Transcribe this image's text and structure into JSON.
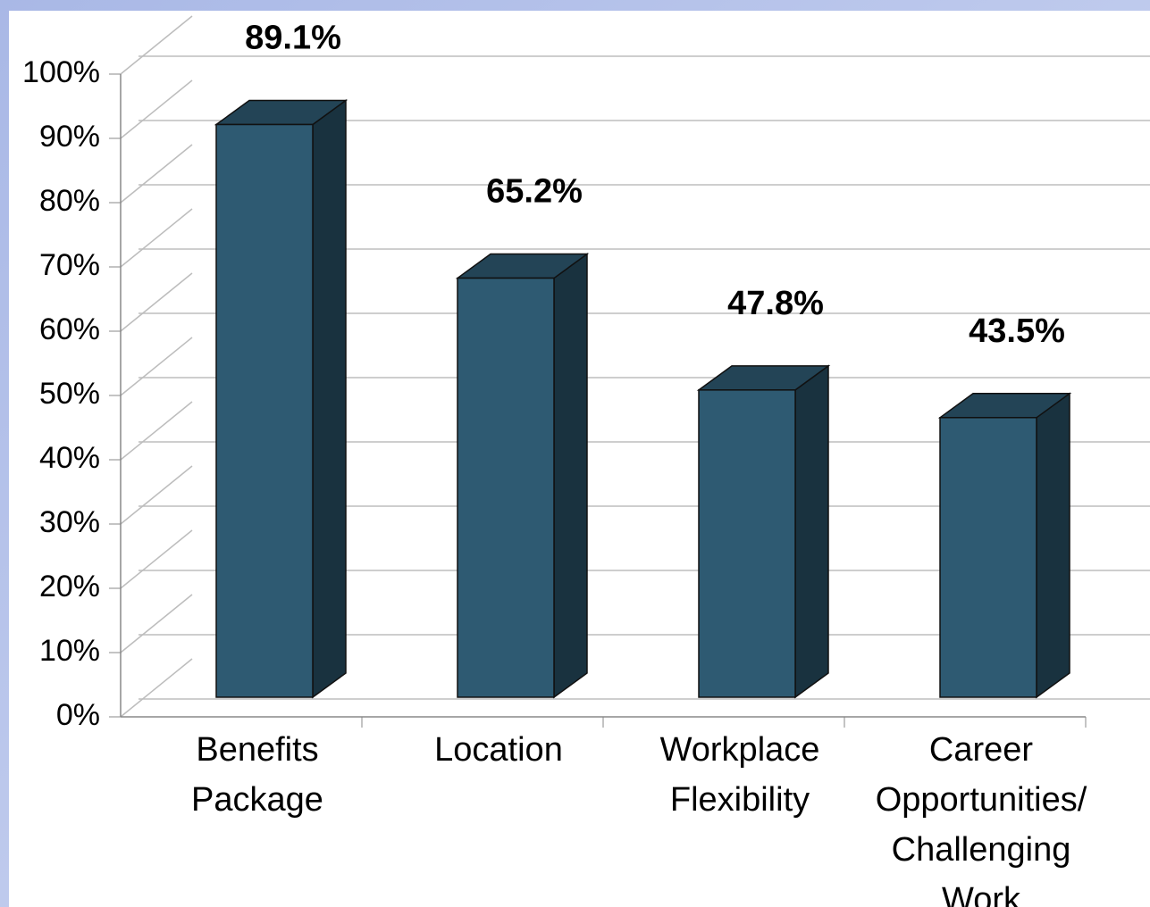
{
  "chart_data": {
    "type": "bar3d",
    "categories": [
      [
        "Benefits",
        "Package"
      ],
      [
        "Location"
      ],
      [
        "Workplace",
        "Flexibility"
      ],
      [
        "Career",
        "Opportunities/",
        "Challenging",
        "Work"
      ]
    ],
    "values": [
      89.1,
      65.2,
      47.8,
      43.5
    ],
    "value_labels": [
      "89.1%",
      "65.2%",
      "47.8%",
      "43.5%"
    ],
    "color": "#2e5a72",
    "ylim": [
      0,
      100
    ],
    "yticks": [
      {
        "value": 0,
        "label": "0%"
      },
      {
        "value": 10,
        "label": "10%"
      },
      {
        "value": 20,
        "label": "20%"
      },
      {
        "value": 30,
        "label": "30%"
      },
      {
        "value": 40,
        "label": "40%"
      },
      {
        "value": 50,
        "label": "50%"
      },
      {
        "value": 60,
        "label": "60%"
      },
      {
        "value": 70,
        "label": "70%"
      },
      {
        "value": 80,
        "label": "80%"
      },
      {
        "value": 90,
        "label": "90%"
      },
      {
        "value": 100,
        "label": "100%"
      }
    ],
    "grid": true
  }
}
